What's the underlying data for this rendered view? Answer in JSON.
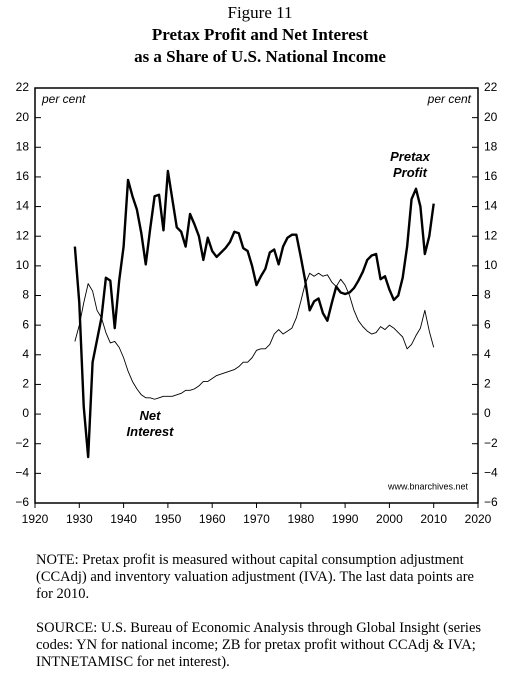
{
  "chart_data": {
    "type": "line",
    "title": [
      "Figure 11",
      "Pretax Profit and Net Interest",
      "as a Share of U.S. National Income"
    ],
    "y_unit_label": "per cent",
    "source_credit": "www.bnarchives.net",
    "notes": [
      "NOTE: Pretax profit is measured without capital consumption adjustment (CCAdj) and inventory valuation adjustment (IVA). The last data points are for 2010.",
      "SOURCE: U.S. Bureau of Economic Analysis through Global Insight (series codes: YN for national income; ZB for pretax profit without CCAdj & IVA; INTNETAMISC for net interest)."
    ],
    "x": [
      1929,
      1930,
      1931,
      1932,
      1933,
      1934,
      1935,
      1936,
      1937,
      1938,
      1939,
      1940,
      1941,
      1942,
      1943,
      1944,
      1945,
      1946,
      1947,
      1948,
      1949,
      1950,
      1951,
      1952,
      1953,
      1954,
      1955,
      1956,
      1957,
      1958,
      1959,
      1960,
      1961,
      1962,
      1963,
      1964,
      1965,
      1966,
      1967,
      1968,
      1969,
      1970,
      1971,
      1972,
      1973,
      1974,
      1975,
      1976,
      1977,
      1978,
      1979,
      1980,
      1981,
      1982,
      1983,
      1984,
      1985,
      1986,
      1987,
      1988,
      1989,
      1990,
      1991,
      1992,
      1993,
      1994,
      1995,
      1996,
      1997,
      1998,
      1999,
      2000,
      2001,
      2002,
      2003,
      2004,
      2005,
      2006,
      2007,
      2008,
      2009,
      2010
    ],
    "series": [
      {
        "name": "Pretax Profit",
        "color": "#000000",
        "values": [
          11.3,
          7.5,
          0.5,
          -2.9,
          3.5,
          5,
          6.5,
          9.2,
          9,
          5.8,
          9,
          11.3,
          15.8,
          14.7,
          13.8,
          12.2,
          10.1,
          12.5,
          14.7,
          14.8,
          12.4,
          16.4,
          14.5,
          12.6,
          12.3,
          11.3,
          13.5,
          12.8,
          12,
          10.4,
          11.9,
          11,
          10.6,
          10.9,
          11.2,
          11.6,
          12.3,
          12.2,
          11.2,
          11,
          10,
          8.7,
          9.3,
          9.8,
          10.9,
          11.1,
          10.1,
          11.3,
          11.9,
          12.1,
          12.1,
          10.6,
          9,
          7,
          7.6,
          7.8,
          6.8,
          6.3,
          7.5,
          8.6,
          8.2,
          8.1,
          8.2,
          8.5,
          9,
          9.6,
          10.4,
          10.7,
          10.8,
          9.1,
          9.3,
          8.4,
          7.7,
          8,
          9.2,
          11.3,
          14.5,
          15.2,
          14,
          10.8,
          12,
          14.2
        ]
      },
      {
        "name": "Net Interest",
        "color": "#000000",
        "values": [
          4.9,
          6,
          7.5,
          8.8,
          8.3,
          7,
          6.5,
          5.5,
          4.8,
          4.9,
          4.5,
          3.8,
          2.9,
          2.2,
          1.7,
          1.3,
          1.1,
          1.1,
          1.0,
          1.1,
          1.2,
          1.2,
          1.2,
          1.3,
          1.4,
          1.6,
          1.6,
          1.7,
          1.9,
          2.2,
          2.2,
          2.4,
          2.6,
          2.7,
          2.8,
          2.9,
          3.0,
          3.2,
          3.5,
          3.5,
          3.8,
          4.3,
          4.4,
          4.4,
          4.7,
          5.4,
          5.7,
          5.4,
          5.6,
          5.8,
          6.5,
          7.6,
          8.8,
          9.5,
          9.3,
          9.5,
          9.3,
          9.4,
          8.9,
          8.6,
          9.1,
          8.7,
          8.0,
          7.0,
          6.3,
          5.9,
          5.6,
          5.4,
          5.5,
          5.9,
          5.7,
          6.0,
          5.8,
          5.5,
          5.2,
          4.4,
          4.7,
          5.3,
          5.8,
          7.0,
          5.6,
          4.5
        ]
      }
    ],
    "xlim": [
      1920,
      2020
    ],
    "xticks": [
      1920,
      1930,
      1940,
      1950,
      1960,
      1970,
      1980,
      1990,
      2000,
      2010,
      2020
    ],
    "ylim": [
      -6,
      22
    ],
    "yticks": [
      {
        "value": -6,
        "label": "−6"
      },
      {
        "value": -4,
        "label": "−4"
      },
      {
        "value": -2,
        "label": "−2"
      },
      0,
      2,
      4,
      6,
      8,
      10,
      12,
      14,
      16,
      18,
      20,
      22
    ]
  }
}
